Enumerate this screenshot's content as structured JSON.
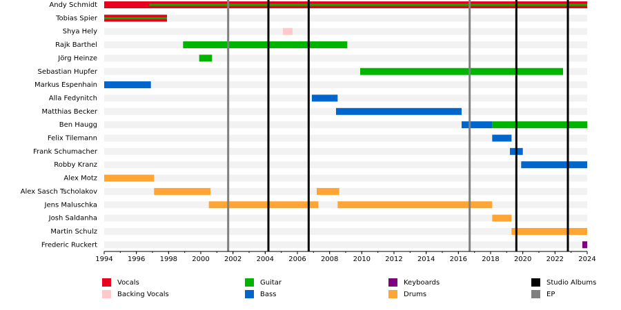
{
  "chart_data": {
    "type": "timeline",
    "categories": [
      "Andy Schmidt",
      "Tobias Spier",
      "Shya Hely",
      "Rajk Barthel",
      "Jörg Heinze",
      "Sebastian Hupfer",
      "Markus Espenhain",
      "Alla Fedynitch",
      "Matthias Becker",
      "Ben Haugg",
      "Felix Tilemann",
      "Frank Schumacher",
      "Robby Kranz",
      "Alex Motz",
      "Alex Sasch Tscholakov",
      "Jens Maluschka",
      "Josh Saldanha",
      "Martin Schulz",
      "Frederic Ruckert"
    ],
    "series": [
      {
        "name": "Vocals",
        "color": "#e8001c",
        "segments": [
          {
            "member": "Andy Schmidt",
            "start": 1994,
            "end": 2024
          },
          {
            "member": "Tobias Spier",
            "start": 1994,
            "end": 1997.9
          }
        ]
      },
      {
        "name": "Backing Vocals",
        "color": "#ffc8cc",
        "segments": [
          {
            "member": "Shya Hely",
            "start": 2005.1,
            "end": 2005.7
          }
        ]
      },
      {
        "name": "Guitar",
        "color": "#00b400",
        "inner": true,
        "segments": [
          {
            "member": "Andy Schmidt",
            "start": 1996.8,
            "end": 2024
          },
          {
            "member": "Tobias Spier",
            "start": 1994,
            "end": 1997.9
          }
        ]
      },
      {
        "name": "Guitar",
        "color": "#00b400",
        "segments": [
          {
            "member": "Rajk Barthel",
            "start": 1998.9,
            "end": 2009.1
          },
          {
            "member": "Jörg Heinze",
            "start": 1999.9,
            "end": 2000.7
          },
          {
            "member": "Sebastian Hupfer",
            "start": 2009.9,
            "end": 2022.5
          },
          {
            "member": "Ben Haugg",
            "start": 2018.1,
            "end": 2024
          }
        ]
      },
      {
        "name": "Bass",
        "color": "#0066cc",
        "segments": [
          {
            "member": "Markus Espenhain",
            "start": 1994,
            "end": 1996.9
          },
          {
            "member": "Alla Fedynitch",
            "start": 2006.9,
            "end": 2008.5
          },
          {
            "member": "Matthias Becker",
            "start": 2008.4,
            "end": 2016.2
          },
          {
            "member": "Ben Haugg",
            "start": 2016.2,
            "end": 2018.1
          },
          {
            "member": "Felix Tilemann",
            "start": 2018.1,
            "end": 2019.3
          },
          {
            "member": "Frank Schumacher",
            "start": 2019.2,
            "end": 2020
          },
          {
            "member": "Robby Kranz",
            "start": 2019.9,
            "end": 2024
          }
        ]
      },
      {
        "name": "Keyboards",
        "color": "#7f007f",
        "segments": [
          {
            "member": "Frederic Ruckert",
            "start": 2023.7,
            "end": 2024
          }
        ]
      },
      {
        "name": "Drums",
        "color": "#ffa533",
        "segments": [
          {
            "member": "Alex Motz",
            "start": 1994,
            "end": 1997.1
          },
          {
            "member": "Alex Sasch Tscholakov",
            "start": 1997.1,
            "end": 2000.6
          },
          {
            "member": "Alex Sasch Tscholakov",
            "start": 2007.2,
            "end": 2008.6
          },
          {
            "member": "Jens Maluschka",
            "start": 2000.5,
            "end": 2007.3
          },
          {
            "member": "Jens Maluschka",
            "start": 2008.5,
            "end": 2018.1
          },
          {
            "member": "Josh Saldanha",
            "start": 2018.1,
            "end": 2019.3
          },
          {
            "member": "Martin Schulz",
            "start": 2019.3,
            "end": 2024
          }
        ]
      }
    ],
    "markers": [
      {
        "name": "Studio Albums",
        "color": "#000000",
        "x": [
          2004.2,
          2006.7,
          2019.6,
          2022.8
        ]
      },
      {
        "name": "EP",
        "color": "#808080",
        "x": [
          2001.7,
          2016.7
        ]
      }
    ],
    "xlim": [
      1994,
      2024
    ],
    "xticks": [
      1994,
      1996,
      1998,
      2000,
      2002,
      2004,
      2006,
      2008,
      2010,
      2012,
      2014,
      2016,
      2018,
      2020,
      2022,
      2024
    ]
  }
}
